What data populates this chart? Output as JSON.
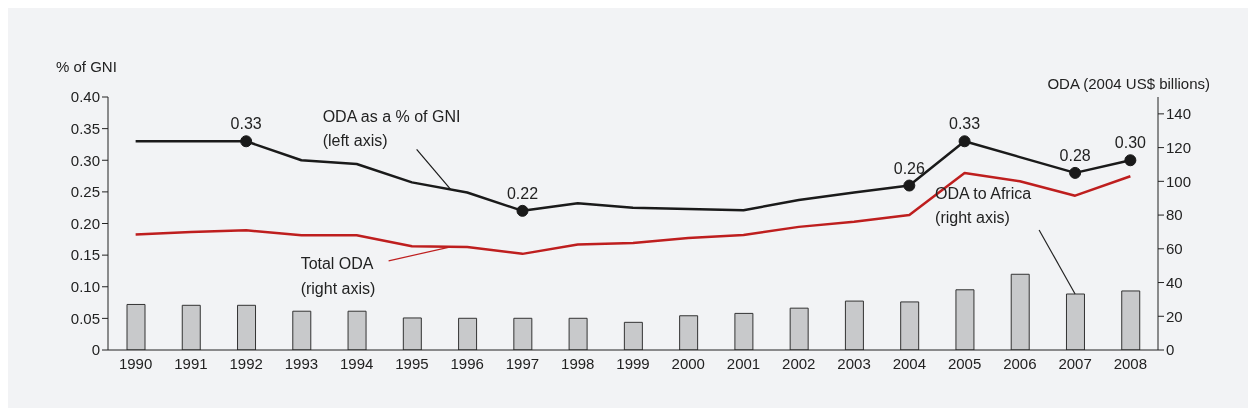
{
  "chart_data": {
    "type": "line",
    "ylabel": "% of GNI",
    "y2label": "ODA (2004 US$ billions)",
    "categories": [
      "1990",
      "1991",
      "1992",
      "1993",
      "1994",
      "1995",
      "1996",
      "1997",
      "1998",
      "1999",
      "2000",
      "2001",
      "2002",
      "2003",
      "2004",
      "2005",
      "2006",
      "2007",
      "2008"
    ],
    "series": [
      {
        "name": "ODA to Africa\n(right axis)",
        "type": "bar",
        "axis": "y2",
        "color": "#c8c9cb",
        "values": [
          27,
          26.5,
          26.5,
          23,
          23,
          19,
          18.8,
          18.8,
          18.8,
          16.4,
          20.3,
          21.7,
          24.8,
          29,
          28.5,
          35.7,
          44.9,
          33.2,
          35
        ]
      },
      {
        "name": "Total ODA\n(right axis)",
        "axis": "y2",
        "color": "#be1e1e",
        "marker": "none",
        "values": [
          68.5,
          70,
          71,
          68,
          68,
          61.5,
          61,
          57,
          62.5,
          63.5,
          66.4,
          68.2,
          73,
          76,
          80,
          105,
          100,
          91.5,
          103
        ]
      },
      {
        "name": "ODA as a % of GNI\n(left axis)",
        "axis": "y",
        "color": "#1a1a1a",
        "values": [
          0.33,
          0.33,
          0.33,
          0.3,
          0.294,
          0.265,
          0.249,
          0.22,
          0.232,
          0.225,
          0.223,
          0.221,
          0.237,
          0.249,
          0.26,
          0.33,
          0.305,
          0.28,
          0.3
        ],
        "value_labels": [
          null,
          null,
          "0.33",
          null,
          null,
          null,
          null,
          "0.22",
          null,
          null,
          null,
          null,
          null,
          null,
          "0.26",
          "0.33",
          null,
          "0.28",
          "0.30"
        ]
      }
    ],
    "ylim": [
      0,
      0.4
    ],
    "yticks": [
      0,
      {
        "value": 0.05,
        "label": "0.05"
      },
      {
        "value": 0.1,
        "label": "0.10"
      },
      {
        "value": 0.15,
        "label": "0.15"
      },
      {
        "value": 0.2,
        "label": "0.20"
      },
      {
        "value": 0.25,
        "label": "0.25"
      },
      {
        "value": 0.3,
        "label": "0.30"
      },
      {
        "value": 0.35,
        "label": "0.35"
      },
      {
        "value": 0.4,
        "label": "0.40"
      }
    ],
    "y2lim": [
      0,
      150
    ],
    "y2ticks": [
      0,
      20,
      40,
      60,
      80,
      100,
      120,
      140
    ],
    "grid": false,
    "legend": false
  }
}
